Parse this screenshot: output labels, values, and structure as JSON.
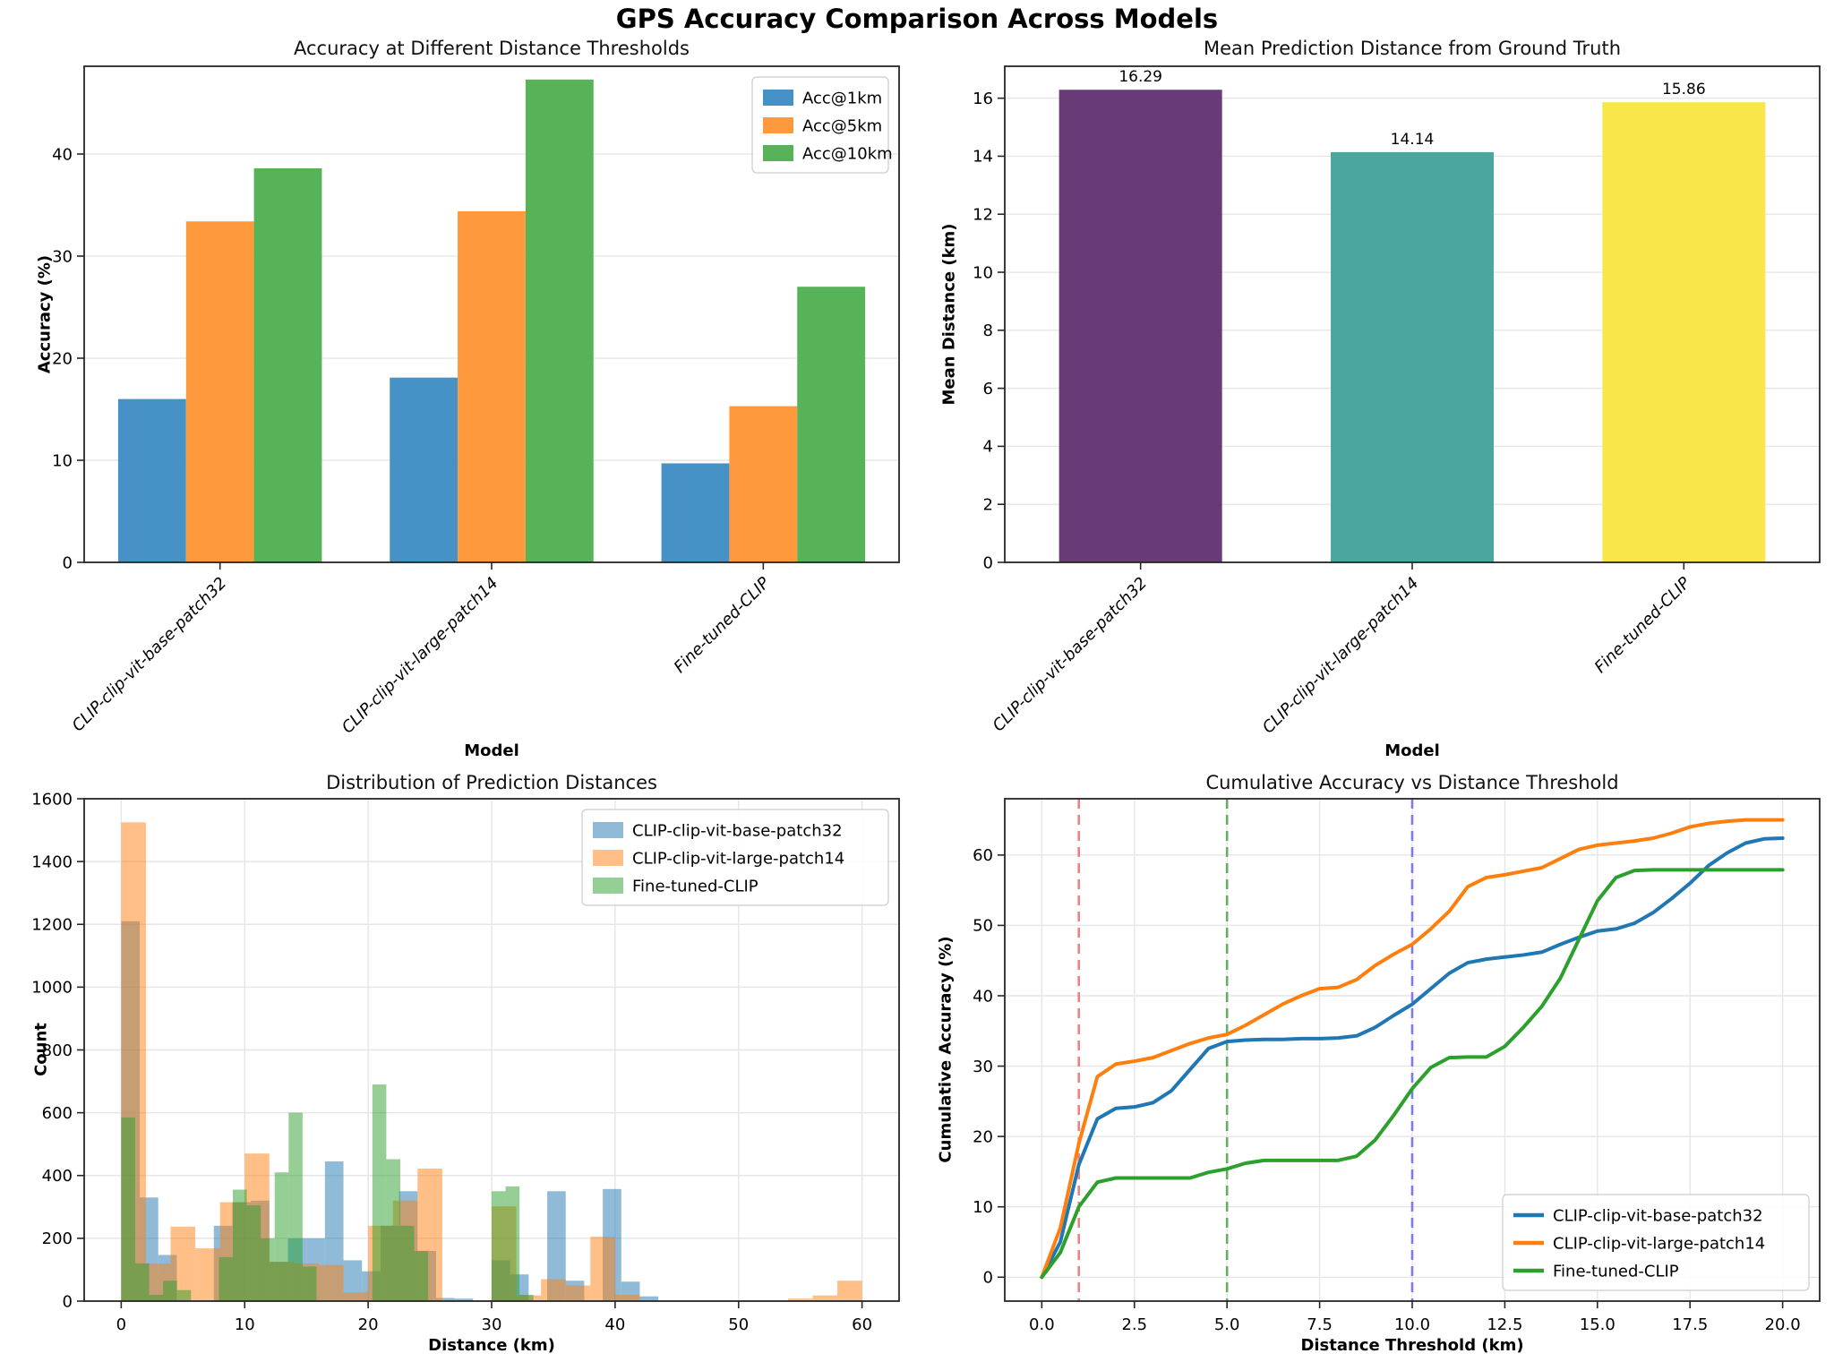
{
  "suptitle": "GPS Accuracy Comparison Across Models",
  "chart_data": [
    {
      "type": "grouped_bar",
      "title": "Accuracy at Different Distance Thresholds",
      "xlabel": "Model",
      "ylabel": "Accuracy (%)",
      "categories": [
        "CLIP-clip-vit-base-patch32",
        "CLIP-clip-vit-large-patch14",
        "Fine-tuned-CLIP"
      ],
      "series": [
        {
          "name": "Acc@1km",
          "color": "#4692C7",
          "values": [
            16.0,
            18.1,
            9.7
          ]
        },
        {
          "name": "Acc@5km",
          "color": "#FF993E",
          "values": [
            33.4,
            34.4,
            15.3
          ]
        },
        {
          "name": "Acc@10km",
          "color": "#57B357",
          "values": [
            38.6,
            47.3,
            27.0
          ]
        }
      ],
      "bar_width": 0.25,
      "ylim": [
        0,
        48.6
      ],
      "yticks": [
        0,
        10,
        20,
        30,
        40
      ],
      "grid": "horizontal",
      "legend": "upper-right",
      "legend_style": "rect"
    },
    {
      "type": "bar",
      "title": "Mean Prediction Distance from Ground Truth",
      "xlabel": "Model",
      "ylabel": "Mean Distance (km)",
      "categories": [
        "CLIP-clip-vit-base-patch32",
        "CLIP-clip-vit-large-patch14",
        "Fine-tuned-CLIP"
      ],
      "values": [
        16.29,
        14.14,
        15.86
      ],
      "value_labels": [
        "16.29",
        "14.14",
        "15.86"
      ],
      "bar_colors": [
        "#683A78",
        "#4AA7A0",
        "#F9E64A"
      ],
      "bar_width": 0.6,
      "ylim": [
        0,
        17.1
      ],
      "yticks": [
        0,
        2,
        4,
        6,
        8,
        10,
        12,
        14,
        16
      ],
      "grid": "horizontal"
    },
    {
      "type": "histogram",
      "title": "Distribution of Prediction Distances",
      "xlabel": "Distance (km)",
      "ylabel": "Count",
      "xlim": [
        -3,
        63
      ],
      "ylim": [
        0,
        1600
      ],
      "xticks": [
        0,
        10,
        20,
        30,
        40,
        50,
        60
      ],
      "yticks": [
        0,
        200,
        400,
        600,
        800,
        1000,
        1200,
        1400,
        1600
      ],
      "grid": "both",
      "legend": "upper-right",
      "legend_style": "rect",
      "series": [
        {
          "name": "CLIP-clip-vit-base-patch32",
          "color": "rgba(31,119,180,0.5)",
          "bin_width": 1.5,
          "bins": [
            [
              0,
              1210
            ],
            [
              1.5,
              330
            ],
            [
              3,
              147
            ],
            [
              7.5,
              240
            ],
            [
              9,
              315
            ],
            [
              10.5,
              320
            ],
            [
              12,
              125
            ],
            [
              13.5,
              200
            ],
            [
              15,
              200
            ],
            [
              16.5,
              445
            ],
            [
              18,
              130
            ],
            [
              19.5,
              95
            ],
            [
              21,
              240
            ],
            [
              22.5,
              350
            ],
            [
              24,
              160
            ],
            [
              25.5,
              10
            ],
            [
              27,
              8
            ],
            [
              30,
              130
            ],
            [
              31.5,
              85
            ],
            [
              34.5,
              350
            ],
            [
              36,
              65
            ],
            [
              39,
              357
            ],
            [
              40.5,
              62
            ],
            [
              42,
              15
            ]
          ]
        },
        {
          "name": "CLIP-clip-vit-large-patch14",
          "color": "rgba(255,127,14,0.5)",
          "bin_width": 2,
          "bins": [
            [
              0,
              1525
            ],
            [
              2,
              120
            ],
            [
              4,
              237
            ],
            [
              6,
              168
            ],
            [
              8,
              315
            ],
            [
              10,
              470
            ],
            [
              12,
              125
            ],
            [
              14,
              120
            ],
            [
              16,
              115
            ],
            [
              18,
              28
            ],
            [
              20,
              240
            ],
            [
              22,
              320
            ],
            [
              24,
              422
            ],
            [
              30,
              302
            ],
            [
              32,
              18
            ],
            [
              34,
              70
            ],
            [
              36,
              50
            ],
            [
              38,
              205
            ],
            [
              40,
              20
            ],
            [
              54,
              8
            ],
            [
              56,
              18
            ],
            [
              58,
              65
            ]
          ]
        },
        {
          "name": "Fine-tuned-CLIP",
          "color": "rgba(44,160,44,0.5)",
          "bin_width": 1.13,
          "bins": [
            [
              0,
              585
            ],
            [
              1.13,
              120
            ],
            [
              2.26,
              20
            ],
            [
              3.39,
              65
            ],
            [
              4.52,
              35
            ],
            [
              7.91,
              140
            ],
            [
              9.04,
              355
            ],
            [
              10.17,
              305
            ],
            [
              11.3,
              200
            ],
            [
              12.43,
              410
            ],
            [
              13.56,
              600
            ],
            [
              14.69,
              110
            ],
            [
              20.34,
              690
            ],
            [
              21.47,
              452
            ],
            [
              22.6,
              240
            ],
            [
              23.73,
              160
            ],
            [
              30,
              350
            ],
            [
              31.13,
              365
            ],
            [
              32.26,
              20
            ]
          ]
        }
      ]
    },
    {
      "type": "line",
      "title": "Cumulative Accuracy vs Distance Threshold",
      "xlabel": "Distance Threshold (km)",
      "ylabel": "Cumulative Accuracy (%)",
      "xlim": [
        -1,
        21
      ],
      "ylim": [
        -3.4,
        68
      ],
      "xticks": [
        0,
        2.5,
        5,
        7.5,
        10,
        12.5,
        15,
        17.5,
        20
      ],
      "xtick_labels": [
        "0.0",
        "2.5",
        "5.0",
        "7.5",
        "10.0",
        "12.5",
        "15.0",
        "17.5",
        "20.0"
      ],
      "yticks": [
        0,
        10,
        20,
        30,
        40,
        50,
        60
      ],
      "grid": "both",
      "legend": "lower-right",
      "legend_style": "line",
      "vlines": [
        {
          "x": 1,
          "color": "#F07F7F"
        },
        {
          "x": 5,
          "color": "#66AD66"
        },
        {
          "x": 10,
          "color": "#7B7BEA"
        }
      ],
      "series": [
        {
          "name": "CLIP-clip-vit-base-patch32",
          "color": "#1f77b4",
          "x_start": 0,
          "x_step": 0.5,
          "y": [
            0,
            5,
            16,
            22.5,
            24,
            24.2,
            24.8,
            26.5,
            29.5,
            32.5,
            33.5,
            33.7,
            33.8,
            33.8,
            33.9,
            33.9,
            34,
            34.3,
            35.5,
            37.2,
            38.8,
            41,
            43.2,
            44.7,
            45.2,
            45.5,
            45.8,
            46.2,
            47.3,
            48.3,
            49.2,
            49.5,
            50.3,
            51.8,
            53.8,
            56,
            58.5,
            60.3,
            61.7,
            62.3,
            62.4
          ]
        },
        {
          "name": "CLIP-clip-vit-large-patch14",
          "color": "#ff7f0e",
          "x_start": 0,
          "x_step": 0.5,
          "y": [
            0,
            7,
            19,
            28.5,
            30.3,
            30.7,
            31.2,
            32.2,
            33.2,
            34,
            34.5,
            35.8,
            37.3,
            38.8,
            40,
            41,
            41.2,
            42.3,
            44.3,
            45.9,
            47.3,
            49.5,
            52,
            55.5,
            56.8,
            57.2,
            57.7,
            58.2,
            59.5,
            60.8,
            61.4,
            61.7,
            62,
            62.4,
            63.1,
            64,
            64.5,
            64.8,
            65,
            65,
            65
          ]
        },
        {
          "name": "Fine-tuned-CLIP",
          "color": "#2ca02c",
          "x_start": 0,
          "x_step": 0.5,
          "y": [
            0,
            3.5,
            10,
            13.5,
            14.1,
            14.1,
            14.1,
            14.1,
            14.1,
            14.9,
            15.4,
            16.2,
            16.6,
            16.6,
            16.6,
            16.6,
            16.6,
            17.2,
            19.5,
            23,
            26.8,
            29.8,
            31.2,
            31.3,
            31.3,
            32.8,
            35.5,
            38.5,
            42.5,
            48,
            53.5,
            56.8,
            57.8,
            57.9,
            57.9,
            57.9,
            57.9,
            57.9,
            57.9,
            57.9,
            57.9
          ]
        }
      ]
    }
  ]
}
